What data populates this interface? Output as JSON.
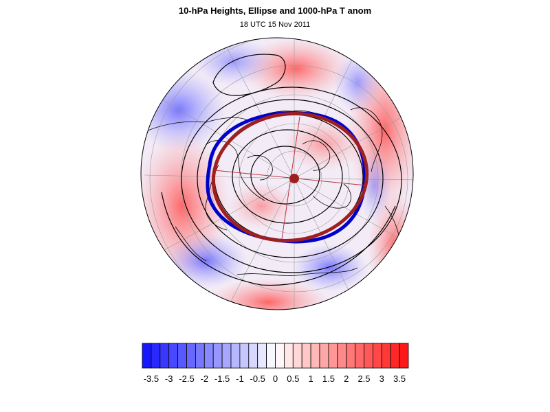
{
  "header": {
    "title": "10-hPa Heights, Ellipse and 1000-hPa T anom",
    "subtitle": "18 UTC 15 Nov 2011"
  },
  "map": {
    "projection": "polar-stereographic-north",
    "colors": {
      "ellipse_blue": "#0000cc",
      "ellipse_red": "#9e1f1f",
      "coast": "#000000"
    }
  },
  "colorbar": {
    "levels": [
      -3.75,
      -3.5,
      -3.25,
      -3,
      -2.75,
      -2.5,
      -2.25,
      -2,
      -1.75,
      -1.5,
      -1.25,
      -1,
      -0.75,
      -0.5,
      -0.25,
      0,
      0.25,
      0.5,
      0.75,
      1,
      1.25,
      1.5,
      1.75,
      2,
      2.25,
      2.5,
      2.75,
      3,
      3.25,
      3.5,
      3.75
    ],
    "labels": [
      "-3.5",
      "-3",
      "-2.5",
      "-2",
      "-1.5",
      "-1",
      "-0.5",
      "0",
      "0.5",
      "1",
      "1.5",
      "2",
      "2.5",
      "3",
      "3.5"
    ],
    "label_values": [
      -3.5,
      -3,
      -2.5,
      -2,
      -1.5,
      -1,
      -0.5,
      0,
      0.5,
      1,
      1.5,
      2,
      2.5,
      3,
      3.5
    ],
    "min": -3.75,
    "max": 3.75,
    "cold_color": "#1010ff",
    "hot_color": "#ff1010"
  }
}
